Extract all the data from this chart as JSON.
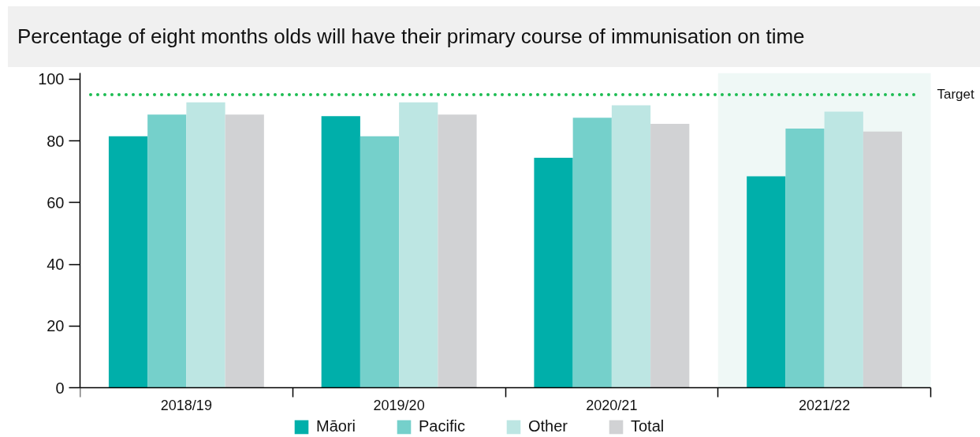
{
  "chart_data": {
    "type": "bar",
    "title": "Percentage of eight months olds will have their primary course of immunisation on time",
    "categories": [
      "2018/19",
      "2019/20",
      "2020/21",
      "2021/22"
    ],
    "series": [
      {
        "name": "Māori",
        "color": "#00afaa",
        "values": [
          81.5,
          88,
          74.5,
          68.5
        ]
      },
      {
        "name": "Pacific",
        "color": "#75d0cb",
        "values": [
          88.5,
          81.5,
          87.5,
          84
        ]
      },
      {
        "name": "Other",
        "color": "#bde6e3",
        "values": [
          92.5,
          92.5,
          91.5,
          89.5
        ]
      },
      {
        "name": "Total",
        "color": "#d1d2d4",
        "values": [
          88.5,
          88.5,
          85.5,
          83
        ]
      }
    ],
    "ylim": [
      0,
      102
    ],
    "yticks": [
      0,
      20,
      40,
      60,
      80,
      100
    ],
    "grid": false,
    "legend": "bottom",
    "ref_lines": [
      {
        "axis": "y",
        "value": 95,
        "label": "Target",
        "color": "#1cbc52",
        "line_style": "dotted"
      }
    ],
    "bands": [
      {
        "axis": "x",
        "from": "2021/22",
        "to": "2021/22",
        "color": "#eff8f6"
      }
    ]
  }
}
